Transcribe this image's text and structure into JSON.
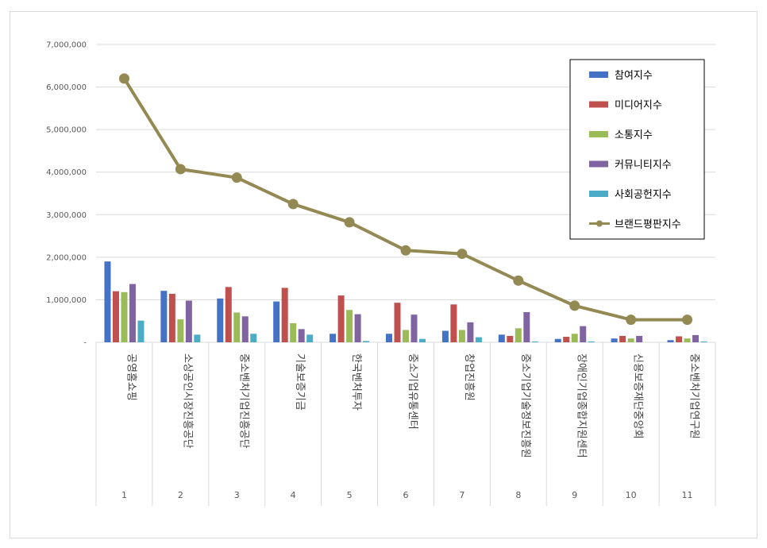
{
  "chart_data": {
    "type": "bar",
    "y_ticks": [
      "-",
      "1,000,000",
      "2,000,000",
      "3,000,000",
      "4,000,000",
      "5,000,000",
      "6,000,000",
      "7,000,000"
    ],
    "ylim": [
      0,
      7000000
    ],
    "grid": true,
    "legend_position": "top-right",
    "categories": [
      "공영홈쇼핑",
      "소상공인시장진흥공단",
      "중소벤처기업진흥공단",
      "기술보증기금",
      "한국벤처투자",
      "중소기업유통센터",
      "창업진흥원",
      "중소기업기술정보진흥원",
      "장애인기업종합지원센터",
      "신용보증재단중앙회",
      "중소벤처기업연구원"
    ],
    "ranks": [
      "1",
      "2",
      "3",
      "4",
      "5",
      "6",
      "7",
      "8",
      "9",
      "10",
      "11"
    ],
    "series": [
      {
        "name": "참여지수",
        "type": "bar",
        "color": "#4472C4",
        "values": [
          1900000,
          1210000,
          1030000,
          960000,
          200000,
          200000,
          270000,
          180000,
          80000,
          90000,
          50000
        ]
      },
      {
        "name": "미디어지수",
        "type": "bar",
        "color": "#C0504D",
        "values": [
          1200000,
          1140000,
          1300000,
          1280000,
          1100000,
          930000,
          890000,
          150000,
          130000,
          150000,
          140000
        ]
      },
      {
        "name": "소통지수",
        "type": "bar",
        "color": "#9BBB59",
        "values": [
          1180000,
          540000,
          700000,
          450000,
          760000,
          290000,
          290000,
          330000,
          200000,
          90000,
          90000
        ]
      },
      {
        "name": "커뮤니티지수",
        "type": "bar",
        "color": "#8064A2",
        "values": [
          1370000,
          980000,
          610000,
          310000,
          660000,
          650000,
          470000,
          710000,
          380000,
          150000,
          170000
        ]
      },
      {
        "name": "사회공헌지수",
        "type": "bar",
        "color": "#4BACC6",
        "values": [
          510000,
          180000,
          200000,
          180000,
          30000,
          80000,
          120000,
          20000,
          20000,
          0,
          20000
        ]
      },
      {
        "name": "브랜드평판지수",
        "type": "line",
        "color": "#938953",
        "values": [
          6200000,
          4070000,
          3870000,
          3250000,
          2820000,
          2160000,
          2080000,
          1450000,
          860000,
          530000,
          530000
        ]
      }
    ]
  }
}
